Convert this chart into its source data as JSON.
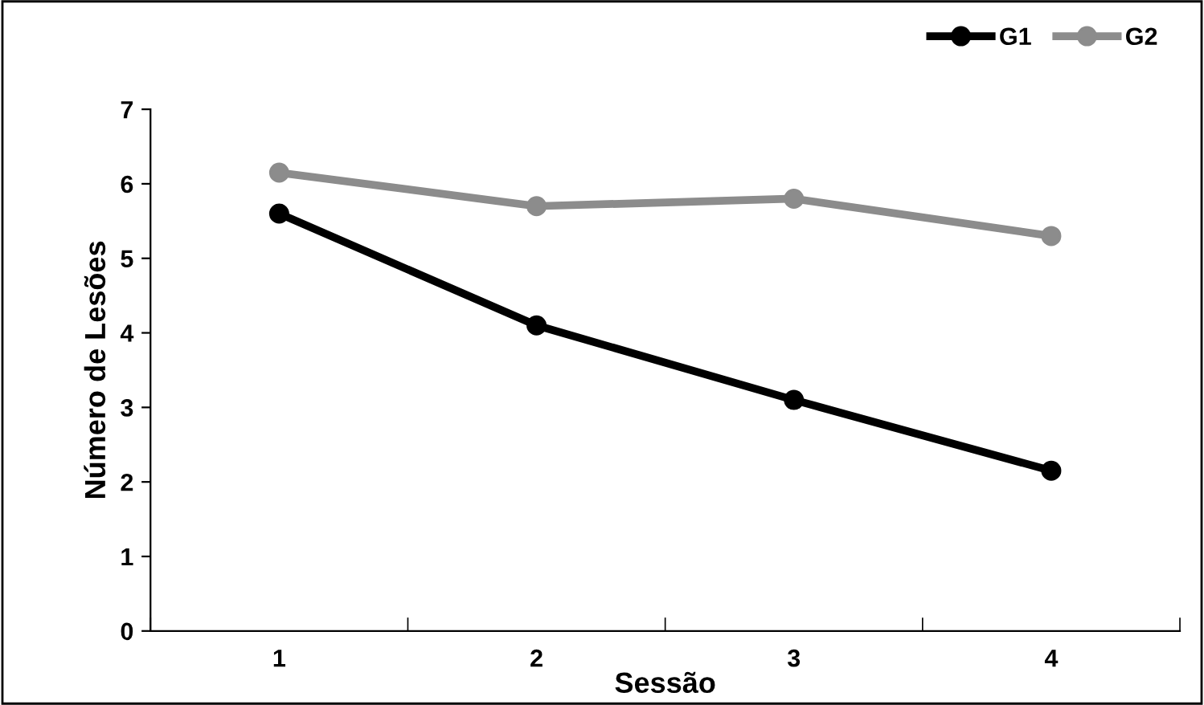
{
  "chart_data": {
    "type": "line",
    "xlabel": "Sessão",
    "ylabel": "Número de Lesões",
    "categories": [
      "1",
      "2",
      "3",
      "4"
    ],
    "series": [
      {
        "name": "G1",
        "color": "#000000",
        "values": [
          5.6,
          4.1,
          3.1,
          2.15
        ]
      },
      {
        "name": "G2",
        "color": "#8c8c8c",
        "values": [
          6.15,
          5.7,
          5.8,
          5.3
        ]
      }
    ],
    "ylim": [
      0,
      7
    ],
    "yticks": [
      0,
      1,
      2,
      3,
      4,
      5,
      6,
      7
    ],
    "grid": false,
    "legend": "top right",
    "marker": "circle",
    "line_style": "solid"
  }
}
